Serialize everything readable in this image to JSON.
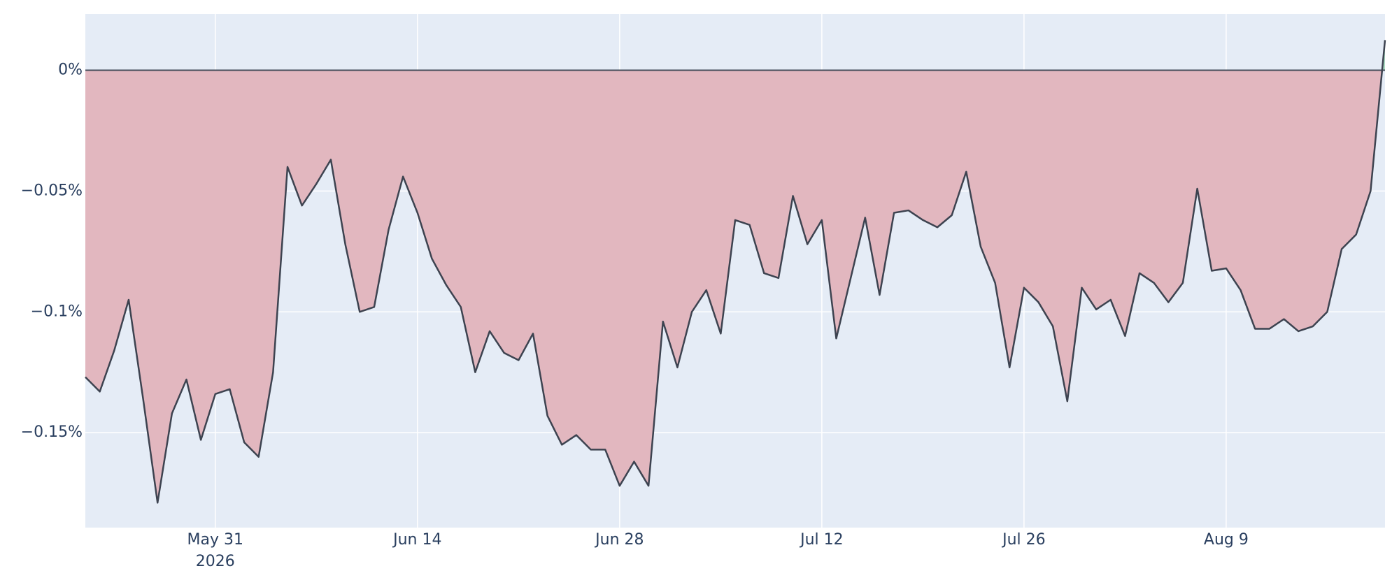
{
  "chart_data": {
    "type": "area",
    "x": [
      "2026-05-22",
      "2026-05-23",
      "2026-05-24",
      "2026-05-25",
      "2026-05-26",
      "2026-05-27",
      "2026-05-28",
      "2026-05-29",
      "2026-05-30",
      "2026-05-31",
      "2026-06-01",
      "2026-06-02",
      "2026-06-03",
      "2026-06-04",
      "2026-06-05",
      "2026-06-06",
      "2026-06-07",
      "2026-06-08",
      "2026-06-09",
      "2026-06-10",
      "2026-06-11",
      "2026-06-12",
      "2026-06-13",
      "2026-06-14",
      "2026-06-15",
      "2026-06-16",
      "2026-06-17",
      "2026-06-18",
      "2026-06-19",
      "2026-06-20",
      "2026-06-21",
      "2026-06-22",
      "2026-06-23",
      "2026-06-24",
      "2026-06-25",
      "2026-06-26",
      "2026-06-27",
      "2026-06-28",
      "2026-06-29",
      "2026-06-30",
      "2026-07-01",
      "2026-07-02",
      "2026-07-03",
      "2026-07-04",
      "2026-07-05",
      "2026-07-06",
      "2026-07-07",
      "2026-07-08",
      "2026-07-09",
      "2026-07-10",
      "2026-07-11",
      "2026-07-12",
      "2026-07-13",
      "2026-07-14",
      "2026-07-15",
      "2026-07-16",
      "2026-07-17",
      "2026-07-18",
      "2026-07-19",
      "2026-07-20",
      "2026-07-21",
      "2026-07-22",
      "2026-07-23",
      "2026-07-24",
      "2026-07-25",
      "2026-07-26",
      "2026-07-27",
      "2026-07-28",
      "2026-07-29",
      "2026-07-30",
      "2026-07-31",
      "2026-08-01",
      "2026-08-02",
      "2026-08-03",
      "2026-08-04",
      "2026-08-05",
      "2026-08-06",
      "2026-08-07",
      "2026-08-08",
      "2026-08-09",
      "2026-08-10",
      "2026-08-11",
      "2026-08-12",
      "2026-08-13",
      "2026-08-14",
      "2026-08-15",
      "2026-08-16",
      "2026-08-17",
      "2026-08-18",
      "2026-08-19",
      "2026-08-20"
    ],
    "values": [
      -0.127,
      -0.133,
      -0.116,
      -0.095,
      -0.136,
      -0.179,
      -0.142,
      -0.128,
      -0.153,
      -0.134,
      -0.132,
      -0.154,
      -0.16,
      -0.125,
      -0.04,
      -0.056,
      -0.047,
      -0.037,
      -0.072,
      -0.1,
      -0.098,
      -0.066,
      -0.044,
      -0.059,
      -0.078,
      -0.089,
      -0.098,
      -0.125,
      -0.108,
      -0.117,
      -0.12,
      -0.109,
      -0.143,
      -0.155,
      -0.151,
      -0.157,
      -0.157,
      -0.172,
      -0.162,
      -0.172,
      -0.104,
      -0.123,
      -0.1,
      -0.091,
      -0.109,
      -0.062,
      -0.064,
      -0.084,
      -0.086,
      -0.052,
      -0.072,
      -0.062,
      -0.111,
      -0.086,
      -0.061,
      -0.093,
      -0.059,
      -0.058,
      -0.062,
      -0.065,
      -0.06,
      -0.042,
      -0.073,
      -0.088,
      -0.123,
      -0.09,
      -0.096,
      -0.106,
      -0.137,
      -0.09,
      -0.099,
      -0.095,
      -0.11,
      -0.084,
      -0.088,
      -0.096,
      -0.088,
      -0.049,
      -0.083,
      -0.082,
      -0.091,
      -0.107,
      -0.107,
      -0.103,
      -0.108,
      -0.106,
      -0.1,
      -0.074,
      -0.068,
      -0.05,
      0.0125
    ],
    "line_color": "#3d4350",
    "fill_below": "#e2b7bf",
    "fill_above": "#a9d9c0",
    "background": "#e5ecf6",
    "grid": true,
    "xlim": [
      "2026-05-22",
      "2026-08-20"
    ],
    "xticks": [
      {
        "value": "2026-05-31",
        "label": "May 31\n2026"
      },
      {
        "value": "2026-06-14",
        "label": "Jun 14"
      },
      {
        "value": "2026-06-28",
        "label": "Jun 28"
      },
      {
        "value": "2026-07-12",
        "label": "Jul 12"
      },
      {
        "value": "2026-07-26",
        "label": "Jul 26"
      },
      {
        "value": "2026-08-09",
        "label": "Aug 9"
      }
    ],
    "ylim": [
      -0.1893,
      0.0233
    ],
    "yticks": [
      {
        "value": 0,
        "label": "0%"
      },
      {
        "value": -0.05,
        "label": "−0.05%"
      },
      {
        "value": -0.1,
        "label": "−0.1%"
      },
      {
        "value": -0.15,
        "label": "−0.15%"
      }
    ]
  }
}
